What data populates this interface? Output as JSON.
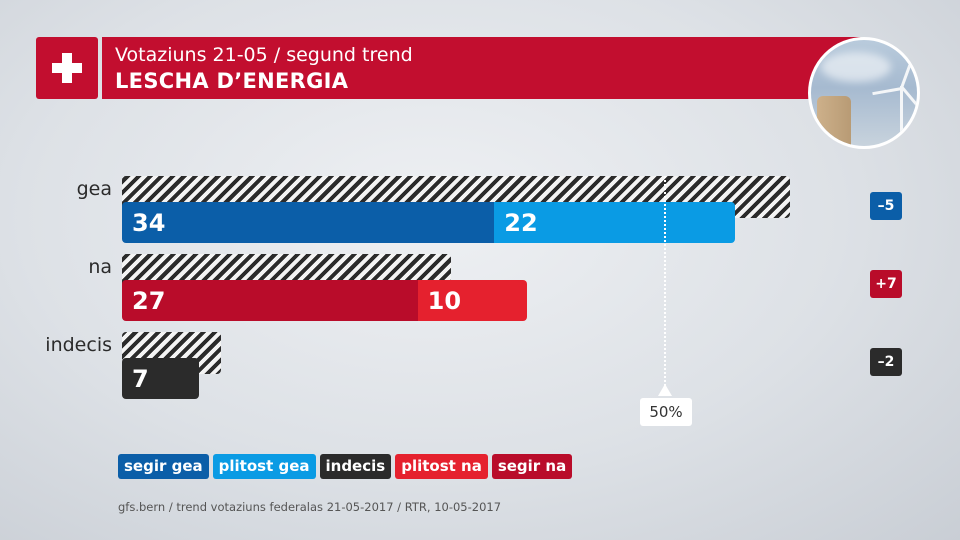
{
  "header": {
    "subtitle": "Votaziuns 21-05 / segund trend",
    "title": "LESCHA D’ENERGIA"
  },
  "colors": {
    "brand_red": "#c20e2f",
    "segir_gea": "#0b5ea8",
    "plitost_gea": "#0a9be4",
    "indecis": "#2b2b2b",
    "plitost_na": "#e5212e",
    "segir_na": "#b90c2a"
  },
  "chart_data": {
    "type": "bar",
    "orientation": "horizontal",
    "stacked": true,
    "categories": [
      "gea",
      "na",
      "indecis"
    ],
    "series": [
      {
        "name": "segir gea",
        "values": [
          34,
          null,
          null
        ]
      },
      {
        "name": "plitost gea",
        "values": [
          22,
          null,
          null
        ]
      },
      {
        "name": "segir na",
        "values": [
          null,
          27,
          null
        ]
      },
      {
        "name": "plitost na",
        "values": [
          null,
          10,
          null
        ]
      },
      {
        "name": "indecis",
        "values": [
          null,
          null,
          7
        ]
      }
    ],
    "previous_trend_totals": [
      61,
      30,
      9
    ],
    "changes": [
      "–5",
      "+7",
      "–2"
    ],
    "reference_line": {
      "value": 50,
      "label": "50%"
    },
    "xlim": [
      0,
      100
    ]
  },
  "legend": [
    {
      "label": "segir gea",
      "color": "#0b5ea8"
    },
    {
      "label": "plitost gea",
      "color": "#0a9be4"
    },
    {
      "label": "indecis",
      "color": "#2b2b2b"
    },
    {
      "label": "plitost na",
      "color": "#e5212e"
    },
    {
      "label": "segir na",
      "color": "#b90c2a"
    }
  ],
  "source": "gfs.bern / trend votaziuns federalas 21-05-2017 / RTR, 10-05-2017"
}
